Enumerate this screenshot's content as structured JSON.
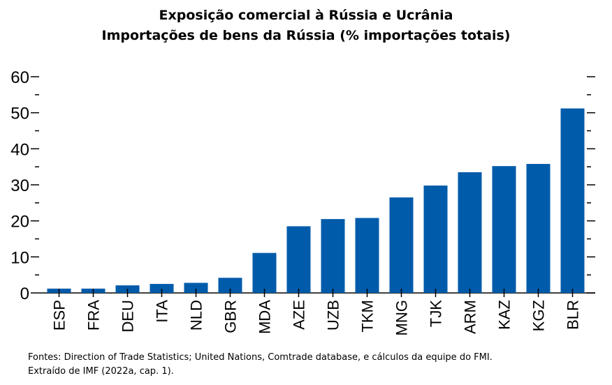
{
  "title": "Exposição comercial à Rússia e Ucrânia",
  "subtitle": "Importações de bens da Rússia (% importações totais)",
  "source_line1": "Fontes: Direction of Trade Statistics; United Nations, Comtrade database, e cálculos da equipe do FMI.",
  "source_line2": "Extraído de IMF (2022a, cap. 1).",
  "colors": {
    "bar": "#005BAA",
    "axis": "#000000"
  },
  "chart_data": {
    "type": "bar",
    "title": "Exposição comercial à Rússia e Ucrânia",
    "subtitle": "Importações de bens da Rússia (% importações totais)",
    "categories": [
      "ESP",
      "FRA",
      "DEU",
      "ITA",
      "NLD",
      "GBR",
      "MDA",
      "AZE",
      "UZB",
      "TKM",
      "MNG",
      "TJK",
      "ARM",
      "KAZ",
      "KGZ",
      "BLR"
    ],
    "values": [
      1.2,
      1.2,
      2.1,
      2.5,
      2.8,
      4.2,
      11.1,
      18.5,
      20.5,
      20.8,
      26.5,
      29.8,
      33.5,
      35.2,
      35.8,
      51.2
    ],
    "ylim": [
      0,
      60
    ],
    "yticks": [
      0,
      10,
      20,
      30,
      40,
      50,
      60
    ],
    "grid": false
  }
}
